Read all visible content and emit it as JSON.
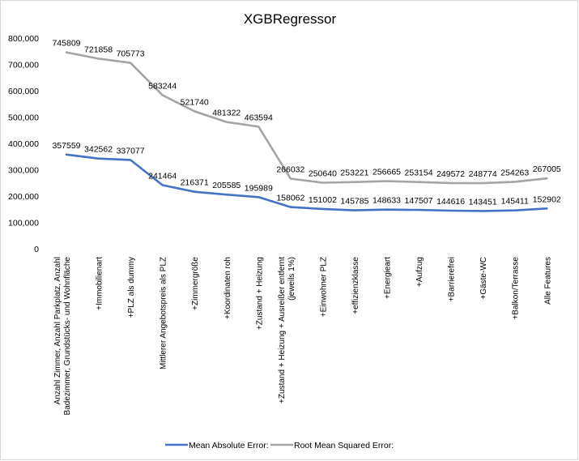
{
  "chart_data": {
    "type": "line",
    "title": "XGBRegressor",
    "xlabel": "",
    "ylabel": "",
    "ylim": [
      0,
      800000
    ],
    "yticks": [
      "0",
      "100,000",
      "200,000",
      "300,000",
      "400,000",
      "500,000",
      "600,000",
      "700,000",
      "800,000"
    ],
    "grid": false,
    "legend_position": "bottom",
    "categories": [
      [
        "Anzahl Zimmer, Anzahl Parkplatz, Anzahl",
        "Badezimmer, Grundstücks- und Wohnfläche"
      ],
      [
        "+Immobilienart"
      ],
      [
        "+PLZ als dummy"
      ],
      [
        "Mittlerer Angebotspreis als PLZ"
      ],
      [
        "+Zimmergröße"
      ],
      [
        "+Koordinaten roh"
      ],
      [
        "+Zustand + Heizung"
      ],
      [
        "+Zustand + Heizung + Ausreißer entfernt",
        "(jeweils 1%)"
      ],
      [
        "+Einwohner PLZ"
      ],
      [
        "+effizienzklasse"
      ],
      [
        "+Energieart"
      ],
      [
        "+Aufzug"
      ],
      [
        "+Barrierefrei"
      ],
      [
        "+Gäste-WC"
      ],
      [
        "+Balkon/Terrasse"
      ],
      [
        "Alle Features"
      ]
    ],
    "series": [
      {
        "name": "Mean Absolute Error:",
        "color": "#4472c4",
        "values": [
          357559,
          342562,
          337077,
          241464,
          216371,
          205585,
          195989,
          158062,
          151002,
          145785,
          148633,
          147507,
          144616,
          143451,
          145411,
          152902
        ]
      },
      {
        "name": "Root Mean Squared Error:",
        "color": "#a5a5a5",
        "values": [
          745809,
          721858,
          705773,
          583244,
          521740,
          481322,
          463594,
          266032,
          250640,
          253221,
          256665,
          253154,
          249572,
          248774,
          254263,
          267005
        ]
      }
    ]
  }
}
